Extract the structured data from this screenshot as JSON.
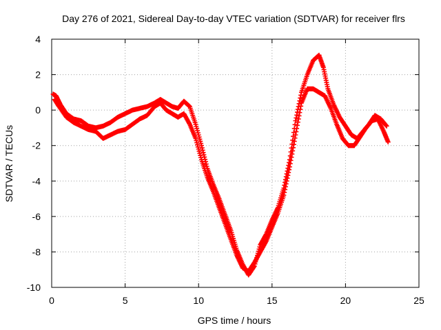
{
  "chart_data": {
    "type": "scatter",
    "title": "Day 276 of 2021, Sidereal Day-to-day VTEC variation (SDTVAR) for receiver flrs",
    "xlabel": "GPS time / hours",
    "ylabel": "SDTVAR / TECUs",
    "xlim": [
      0,
      25
    ],
    "ylim": [
      -10,
      4
    ],
    "xticks": [
      "0",
      "5",
      "10",
      "15",
      "20",
      "25"
    ],
    "yticks": [
      "4",
      "2",
      "0",
      "-2",
      "-4",
      "-6",
      "-8",
      "-10"
    ],
    "grid": true,
    "marker": "+",
    "series": [
      {
        "name": "upper track",
        "color": "#ff0000",
        "x": [
          0.1,
          0.3,
          0.6,
          1.0,
          1.5,
          2.0,
          2.5,
          3.0,
          3.5,
          4.0,
          4.5,
          5.0,
          5.5,
          6.0,
          6.5,
          7.0,
          7.4,
          7.8,
          8.2,
          8.6,
          9.0,
          9.4,
          9.8,
          10.2,
          10.6,
          11.0,
          11.4,
          11.8,
          12.2,
          12.6,
          13.0,
          13.4,
          13.8,
          14.2,
          14.6,
          15.0,
          15.4,
          15.8,
          16.2,
          16.6,
          17.0,
          17.4,
          17.8,
          18.2,
          18.5,
          18.8,
          19.2,
          19.6,
          20.0,
          20.4,
          20.8,
          21.2,
          21.6,
          22.0,
          22.4,
          22.8
        ],
        "y": [
          0.9,
          0.8,
          0.3,
          -0.2,
          -0.5,
          -0.6,
          -0.9,
          -1.0,
          -0.9,
          -0.7,
          -0.4,
          -0.2,
          0.0,
          0.1,
          0.2,
          0.4,
          0.6,
          0.4,
          0.2,
          0.1,
          0.5,
          0.2,
          -0.8,
          -2.0,
          -3.3,
          -4.2,
          -5.0,
          -5.9,
          -6.8,
          -7.9,
          -8.7,
          -9.3,
          -8.8,
          -7.6,
          -7.0,
          -6.2,
          -5.5,
          -4.4,
          -2.8,
          -0.6,
          1.0,
          2.0,
          2.8,
          3.1,
          2.4,
          1.2,
          0.3,
          -0.4,
          -0.9,
          -1.4,
          -1.6,
          -1.2,
          -0.8,
          -0.3,
          -0.5,
          -0.9
        ]
      },
      {
        "name": "lower track",
        "color": "#ff0000",
        "x": [
          0.2,
          0.5,
          1.0,
          1.5,
          2.0,
          2.5,
          3.0,
          3.5,
          4.0,
          4.5,
          5.0,
          5.5,
          6.0,
          6.5,
          7.0,
          7.4,
          7.8,
          8.2,
          8.6,
          9.0,
          9.4,
          9.8,
          10.2,
          10.6,
          11.0,
          11.4,
          11.8,
          12.2,
          12.6,
          13.0,
          13.4,
          13.8,
          14.2,
          14.6,
          15.0,
          15.4,
          15.8,
          16.2,
          16.6,
          17.0,
          17.4,
          17.8,
          18.2,
          18.6,
          19.0,
          19.4,
          19.8,
          20.2,
          20.6,
          21.0,
          21.4,
          21.8,
          22.2,
          22.6,
          22.9
        ],
        "y": [
          0.6,
          0.2,
          -0.4,
          -0.7,
          -0.9,
          -1.1,
          -1.2,
          -1.6,
          -1.4,
          -1.2,
          -1.1,
          -0.8,
          -0.5,
          -0.3,
          0.2,
          0.4,
          0.0,
          -0.2,
          -0.4,
          -0.2,
          -0.8,
          -1.6,
          -2.8,
          -3.8,
          -4.6,
          -5.5,
          -6.4,
          -7.3,
          -8.2,
          -8.9,
          -9.1,
          -8.6,
          -8.0,
          -7.4,
          -6.6,
          -5.8,
          -4.8,
          -3.2,
          -1.4,
          0.4,
          1.2,
          1.2,
          1.0,
          0.8,
          0.1,
          -0.8,
          -1.6,
          -2.0,
          -2.0,
          -1.5,
          -1.0,
          -0.6,
          -0.5,
          -1.2,
          -1.8
        ]
      }
    ]
  }
}
